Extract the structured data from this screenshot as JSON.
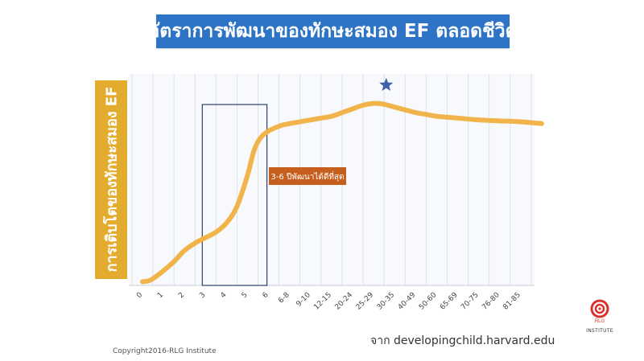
{
  "title": "อัตราการพัฒนาของทักษะสมอง EF ตลอดชีวิต",
  "copyright": "Copyright2016-RLG Institute",
  "source": "จาก developingchild.harvard.edu",
  "logo": {
    "text": "INSTITUTE",
    "color": "#d7332c"
  },
  "colors": {
    "title_bg": "#2e74c6",
    "ylabel_bg": "#e3ac2e",
    "curve": "#f0b44a",
    "callout_bg": "#c65f1e",
    "highlight_box": "#2b3f6b",
    "star": "#3e5fae",
    "grid": "#dde2ea",
    "plot_bg": "#f8f9fc"
  },
  "chart_data": {
    "type": "line",
    "ylabel": "การเติบโตของทักษะสมอง EF",
    "xlabel": "",
    "categories": [
      "0",
      "1",
      "2",
      "3",
      "4",
      "5",
      "6",
      "6-8",
      "9-10",
      "12-15",
      "20-24",
      "25-29",
      "30-35",
      "40-49",
      "50-60",
      "65-69",
      "70-75",
      "76-80",
      "81-85"
    ],
    "curve": [
      [
        0,
        0.02
      ],
      [
        0.4,
        0.03
      ],
      [
        1,
        0.08
      ],
      [
        1.5,
        0.13
      ],
      [
        2,
        0.19
      ],
      [
        2.5,
        0.23
      ],
      [
        3,
        0.26
      ],
      [
        3.5,
        0.29
      ],
      [
        4,
        0.34
      ],
      [
        4.5,
        0.43
      ],
      [
        5,
        0.6
      ],
      [
        5.3,
        0.73
      ],
      [
        5.6,
        0.8
      ],
      [
        6,
        0.84
      ],
      [
        6.6,
        0.87
      ],
      [
        7,
        0.88
      ],
      [
        7.5,
        0.89
      ],
      [
        8,
        0.9
      ],
      [
        8.5,
        0.91
      ],
      [
        9,
        0.92
      ],
      [
        9.5,
        0.94
      ],
      [
        10,
        0.96
      ],
      [
        10.5,
        0.98
      ],
      [
        11,
        0.99
      ],
      [
        11.5,
        0.985
      ],
      [
        12,
        0.97
      ],
      [
        12.5,
        0.955
      ],
      [
        13,
        0.94
      ],
      [
        13.5,
        0.93
      ],
      [
        14,
        0.92
      ],
      [
        15,
        0.91
      ],
      [
        16,
        0.9
      ],
      [
        17,
        0.895
      ],
      [
        18,
        0.89
      ],
      [
        19,
        0.88
      ]
    ],
    "ylim": [
      0,
      1.15
    ],
    "grid": true,
    "highlight": {
      "from": 3,
      "to": 6,
      "label": "3-6 ปีพัฒนาได้ดีที่สุด"
    },
    "peak_marker": {
      "x": 11.6,
      "y": 1.09,
      "symbol": "star"
    }
  }
}
